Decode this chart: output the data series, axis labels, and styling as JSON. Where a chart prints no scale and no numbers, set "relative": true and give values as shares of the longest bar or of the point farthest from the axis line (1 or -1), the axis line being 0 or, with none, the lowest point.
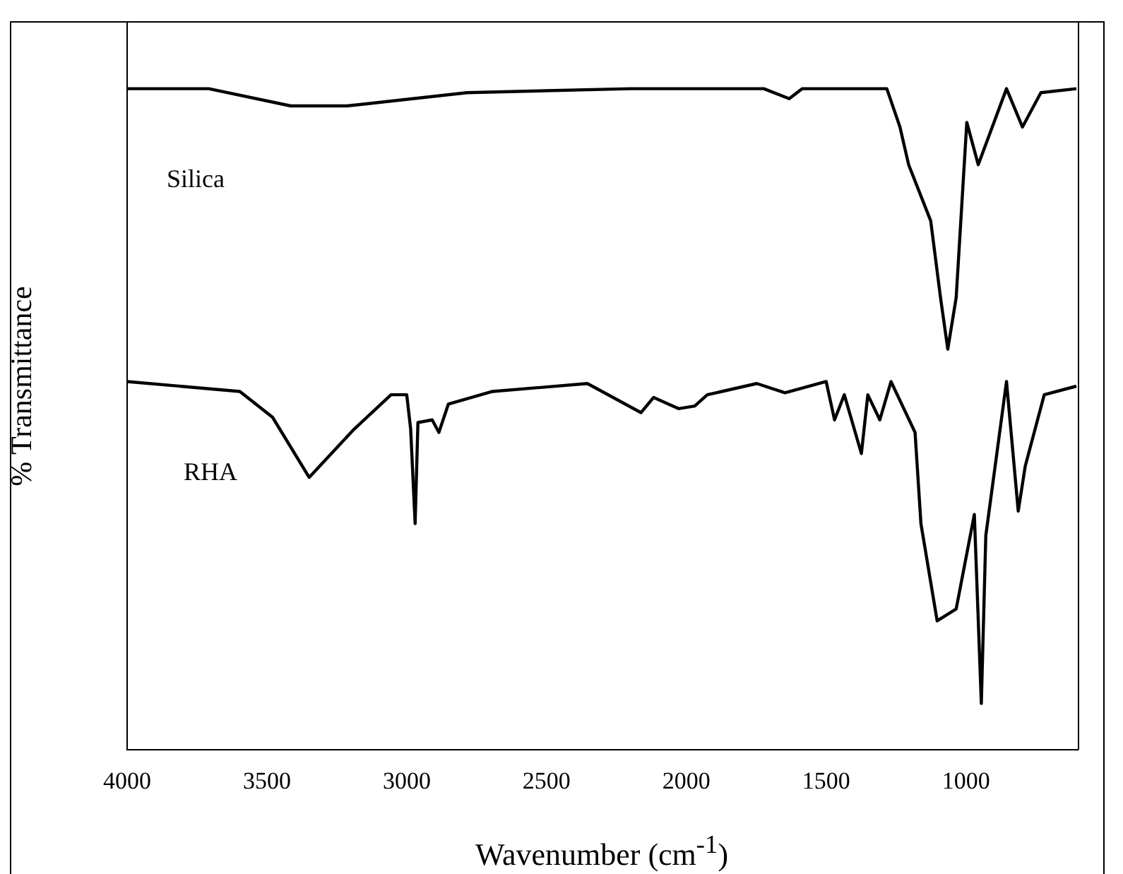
{
  "chart_data": {
    "type": "line",
    "xlabel": "Wavenumber (cm$^{-1}$)",
    "ylabel": "% Transmittance",
    "relative": true,
    "xlim": [
      4000,
      600
    ],
    "xticks": [
      4000,
      3500,
      3000,
      2500,
      2000,
      1500,
      1000
    ],
    "legend": false,
    "grid": false,
    "marker": "none",
    "line_style": "solid",
    "series": [
      {
        "name": "Silica",
        "color": "#000000",
        "x": [
          4000,
          3708,
          3415,
          3213,
          2784,
          2198,
          1723,
          1632,
          1586,
          1283,
          1236,
          1205,
          1126,
          1091,
          1065,
          1035,
          997,
          956,
          855,
          798,
          732,
          605
        ],
        "values": [
          1.0,
          1.0,
          0.974,
          0.974,
          0.994,
          1.0,
          1.0,
          0.985,
          1.0,
          1.0,
          0.942,
          0.885,
          0.8,
          0.684,
          0.606,
          0.684,
          0.949,
          0.885,
          1.0,
          0.942,
          0.994,
          1.0
        ]
      },
      {
        "name": "RHA",
        "color": "#000000",
        "x": [
          4000,
          3597,
          3480,
          3349,
          3188,
          3056,
          3000,
          2986,
          2970,
          2960,
          2909,
          2885,
          2851,
          2693,
          2354,
          2162,
          2117,
          2028,
          1970,
          1925,
          1748,
          1647,
          1500,
          1470,
          1435,
          1374,
          1351,
          1308,
          1268,
          1182,
          1161,
          1103,
          1035,
          970,
          945,
          929,
          855,
          813,
          788,
          720,
          605
        ],
        "values": [
          0.557,
          0.542,
          0.503,
          0.412,
          0.485,
          0.537,
          0.537,
          0.485,
          0.342,
          0.495,
          0.499,
          0.48,
          0.523,
          0.542,
          0.554,
          0.51,
          0.533,
          0.516,
          0.52,
          0.537,
          0.554,
          0.54,
          0.557,
          0.499,
          0.537,
          0.448,
          0.537,
          0.499,
          0.557,
          0.48,
          0.342,
          0.195,
          0.213,
          0.356,
          0.07,
          0.324,
          0.557,
          0.361,
          0.429,
          0.537,
          0.55
        ]
      }
    ]
  }
}
